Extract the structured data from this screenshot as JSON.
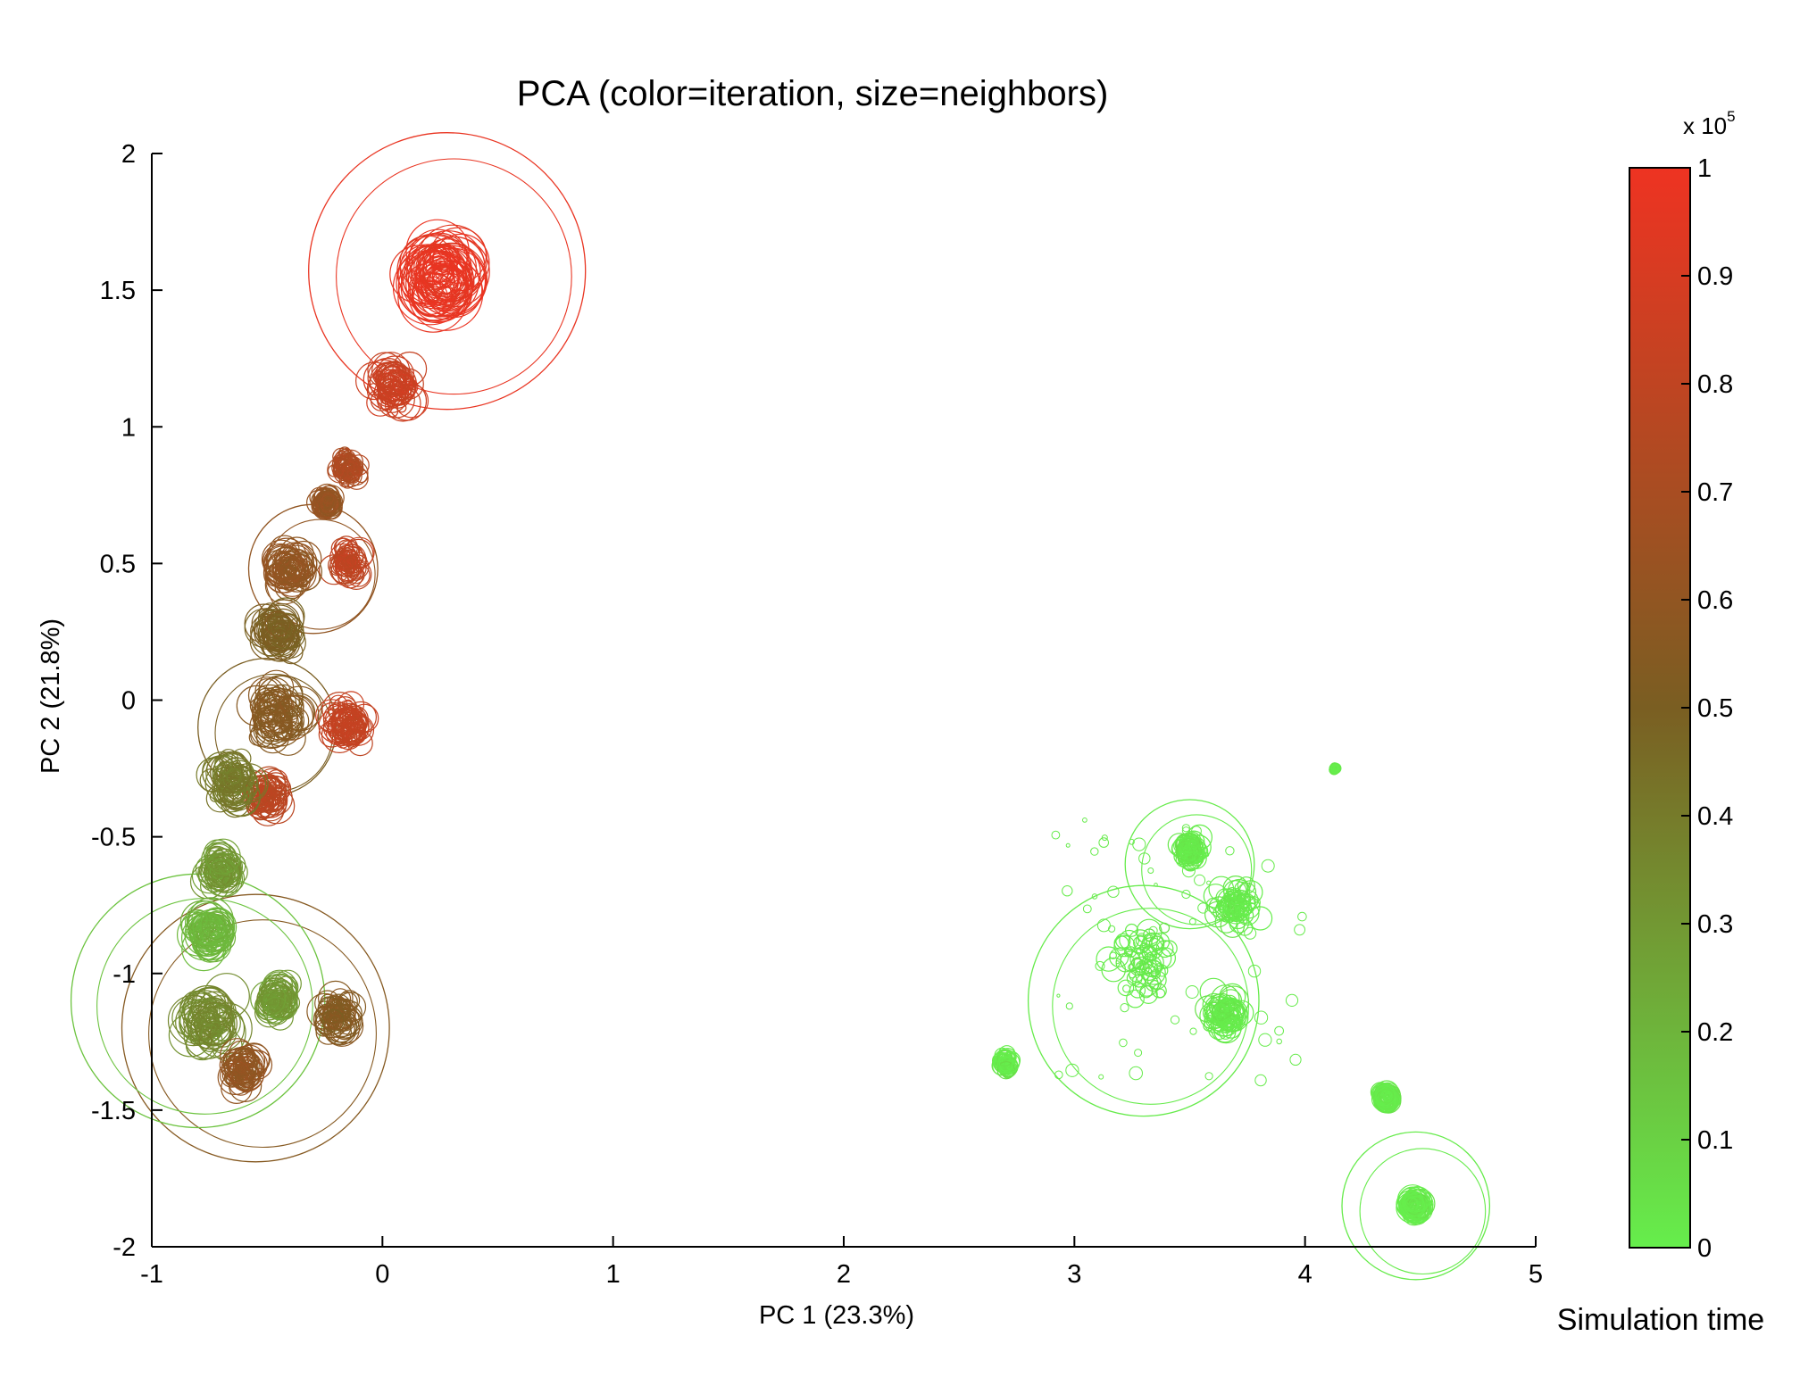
{
  "chart_data": {
    "type": "scatter",
    "title": "PCA (color=iteration, size=neighbors)",
    "xlabel": "PC 1 (23.3%)",
    "ylabel": "PC 2 (21.8%)",
    "xlim": [
      -1,
      5
    ],
    "ylim": [
      -2,
      2
    ],
    "x_ticks": [
      "-1",
      "0",
      "1",
      "2",
      "3",
      "4",
      "5"
    ],
    "y_ticks": [
      "2",
      "1.5",
      "1",
      "0.5",
      "0",
      "-0.5",
      "-1",
      "-1.5",
      "-2"
    ],
    "marker": "open circle",
    "grid": false,
    "colorbar": {
      "label": "Simulation time",
      "multiplier": "x 10",
      "exponent": "5",
      "range": [
        0,
        1
      ],
      "ticks": [
        "1",
        "0.9",
        "0.8",
        "0.7",
        "0.6",
        "0.5",
        "0.4",
        "0.3",
        "0.2",
        "0.1",
        "0"
      ],
      "color_low": "#66ee4c",
      "color_mid": "#7a5e22",
      "color_high": "#ee3322"
    },
    "clusters": [
      {
        "x": 0.25,
        "y": 1.55,
        "t": 0.97,
        "spread": 0.12,
        "r": 0.15
      },
      {
        "x": 0.05,
        "y": 1.15,
        "t": 0.85,
        "spread": 0.1,
        "r": 0.08
      },
      {
        "x": -0.15,
        "y": 0.85,
        "t": 0.72,
        "spread": 0.07,
        "r": 0.05
      },
      {
        "x": -0.25,
        "y": 0.72,
        "t": 0.62,
        "spread": 0.04,
        "r": 0.05
      },
      {
        "x": -0.15,
        "y": 0.5,
        "t": 0.8,
        "spread": 0.08,
        "r": 0.06
      },
      {
        "x": -0.4,
        "y": 0.48,
        "t": 0.6,
        "spread": 0.09,
        "r": 0.08
      },
      {
        "x": -0.45,
        "y": 0.25,
        "t": 0.5,
        "spread": 0.09,
        "r": 0.08
      },
      {
        "x": -0.15,
        "y": -0.08,
        "t": 0.82,
        "spread": 0.09,
        "r": 0.07
      },
      {
        "x": -0.45,
        "y": -0.05,
        "t": 0.55,
        "spread": 0.12,
        "r": 0.09
      },
      {
        "x": -0.5,
        "y": -0.35,
        "t": 0.78,
        "spread": 0.08,
        "r": 0.07
      },
      {
        "x": -0.65,
        "y": -0.3,
        "t": 0.4,
        "spread": 0.1,
        "r": 0.08
      },
      {
        "x": -0.7,
        "y": -0.62,
        "t": 0.3,
        "spread": 0.08,
        "r": 0.07
      },
      {
        "x": -0.75,
        "y": -0.85,
        "t": 0.2,
        "spread": 0.08,
        "r": 0.09
      },
      {
        "x": -0.75,
        "y": -1.18,
        "t": 0.35,
        "spread": 0.12,
        "r": 0.1
      },
      {
        "x": -0.6,
        "y": -1.35,
        "t": 0.6,
        "spread": 0.09,
        "r": 0.07
      },
      {
        "x": -0.2,
        "y": -1.15,
        "t": 0.55,
        "spread": 0.09,
        "r": 0.07
      },
      {
        "x": -0.45,
        "y": -1.1,
        "t": 0.3,
        "spread": 0.08,
        "r": 0.07
      },
      {
        "x": 2.7,
        "y": -1.33,
        "t": 0.01,
        "spread": 0.04,
        "r": 0.04
      },
      {
        "x": 3.5,
        "y": -0.55,
        "t": 0.01,
        "spread": 0.06,
        "r": 0.05
      },
      {
        "x": 3.65,
        "y": -1.15,
        "t": 0.01,
        "spread": 0.1,
        "r": 0.06
      },
      {
        "x": 3.3,
        "y": -0.95,
        "t": 0.01,
        "spread": 0.2,
        "r": 0.05
      },
      {
        "x": 3.7,
        "y": -0.75,
        "t": 0.01,
        "spread": 0.12,
        "r": 0.05
      },
      {
        "x": 4.35,
        "y": -1.45,
        "t": 0.01,
        "spread": 0.03,
        "r": 0.05
      },
      {
        "x": 4.48,
        "y": -1.85,
        "t": 0.01,
        "spread": 0.04,
        "r": 0.06
      },
      {
        "x": 4.13,
        "y": -0.25,
        "t": 0.01,
        "spread": 0.01,
        "r": 0.02
      }
    ],
    "large_circles": [
      {
        "x": 0.28,
        "y": 1.57,
        "r": 0.6,
        "t": 0.98
      },
      {
        "x": -0.55,
        "y": -1.2,
        "r": 0.58,
        "t": 0.55
      },
      {
        "x": -0.8,
        "y": -1.1,
        "r": 0.55,
        "t": 0.15
      },
      {
        "x": 3.3,
        "y": -1.1,
        "r": 0.5,
        "t": 0.01
      },
      {
        "x": 4.48,
        "y": -1.85,
        "r": 0.32,
        "t": 0.01
      },
      {
        "x": 3.5,
        "y": -0.6,
        "r": 0.28,
        "t": 0.01
      },
      {
        "x": -0.3,
        "y": 0.48,
        "r": 0.28,
        "t": 0.6
      },
      {
        "x": -0.5,
        "y": -0.1,
        "r": 0.3,
        "t": 0.5
      }
    ]
  }
}
